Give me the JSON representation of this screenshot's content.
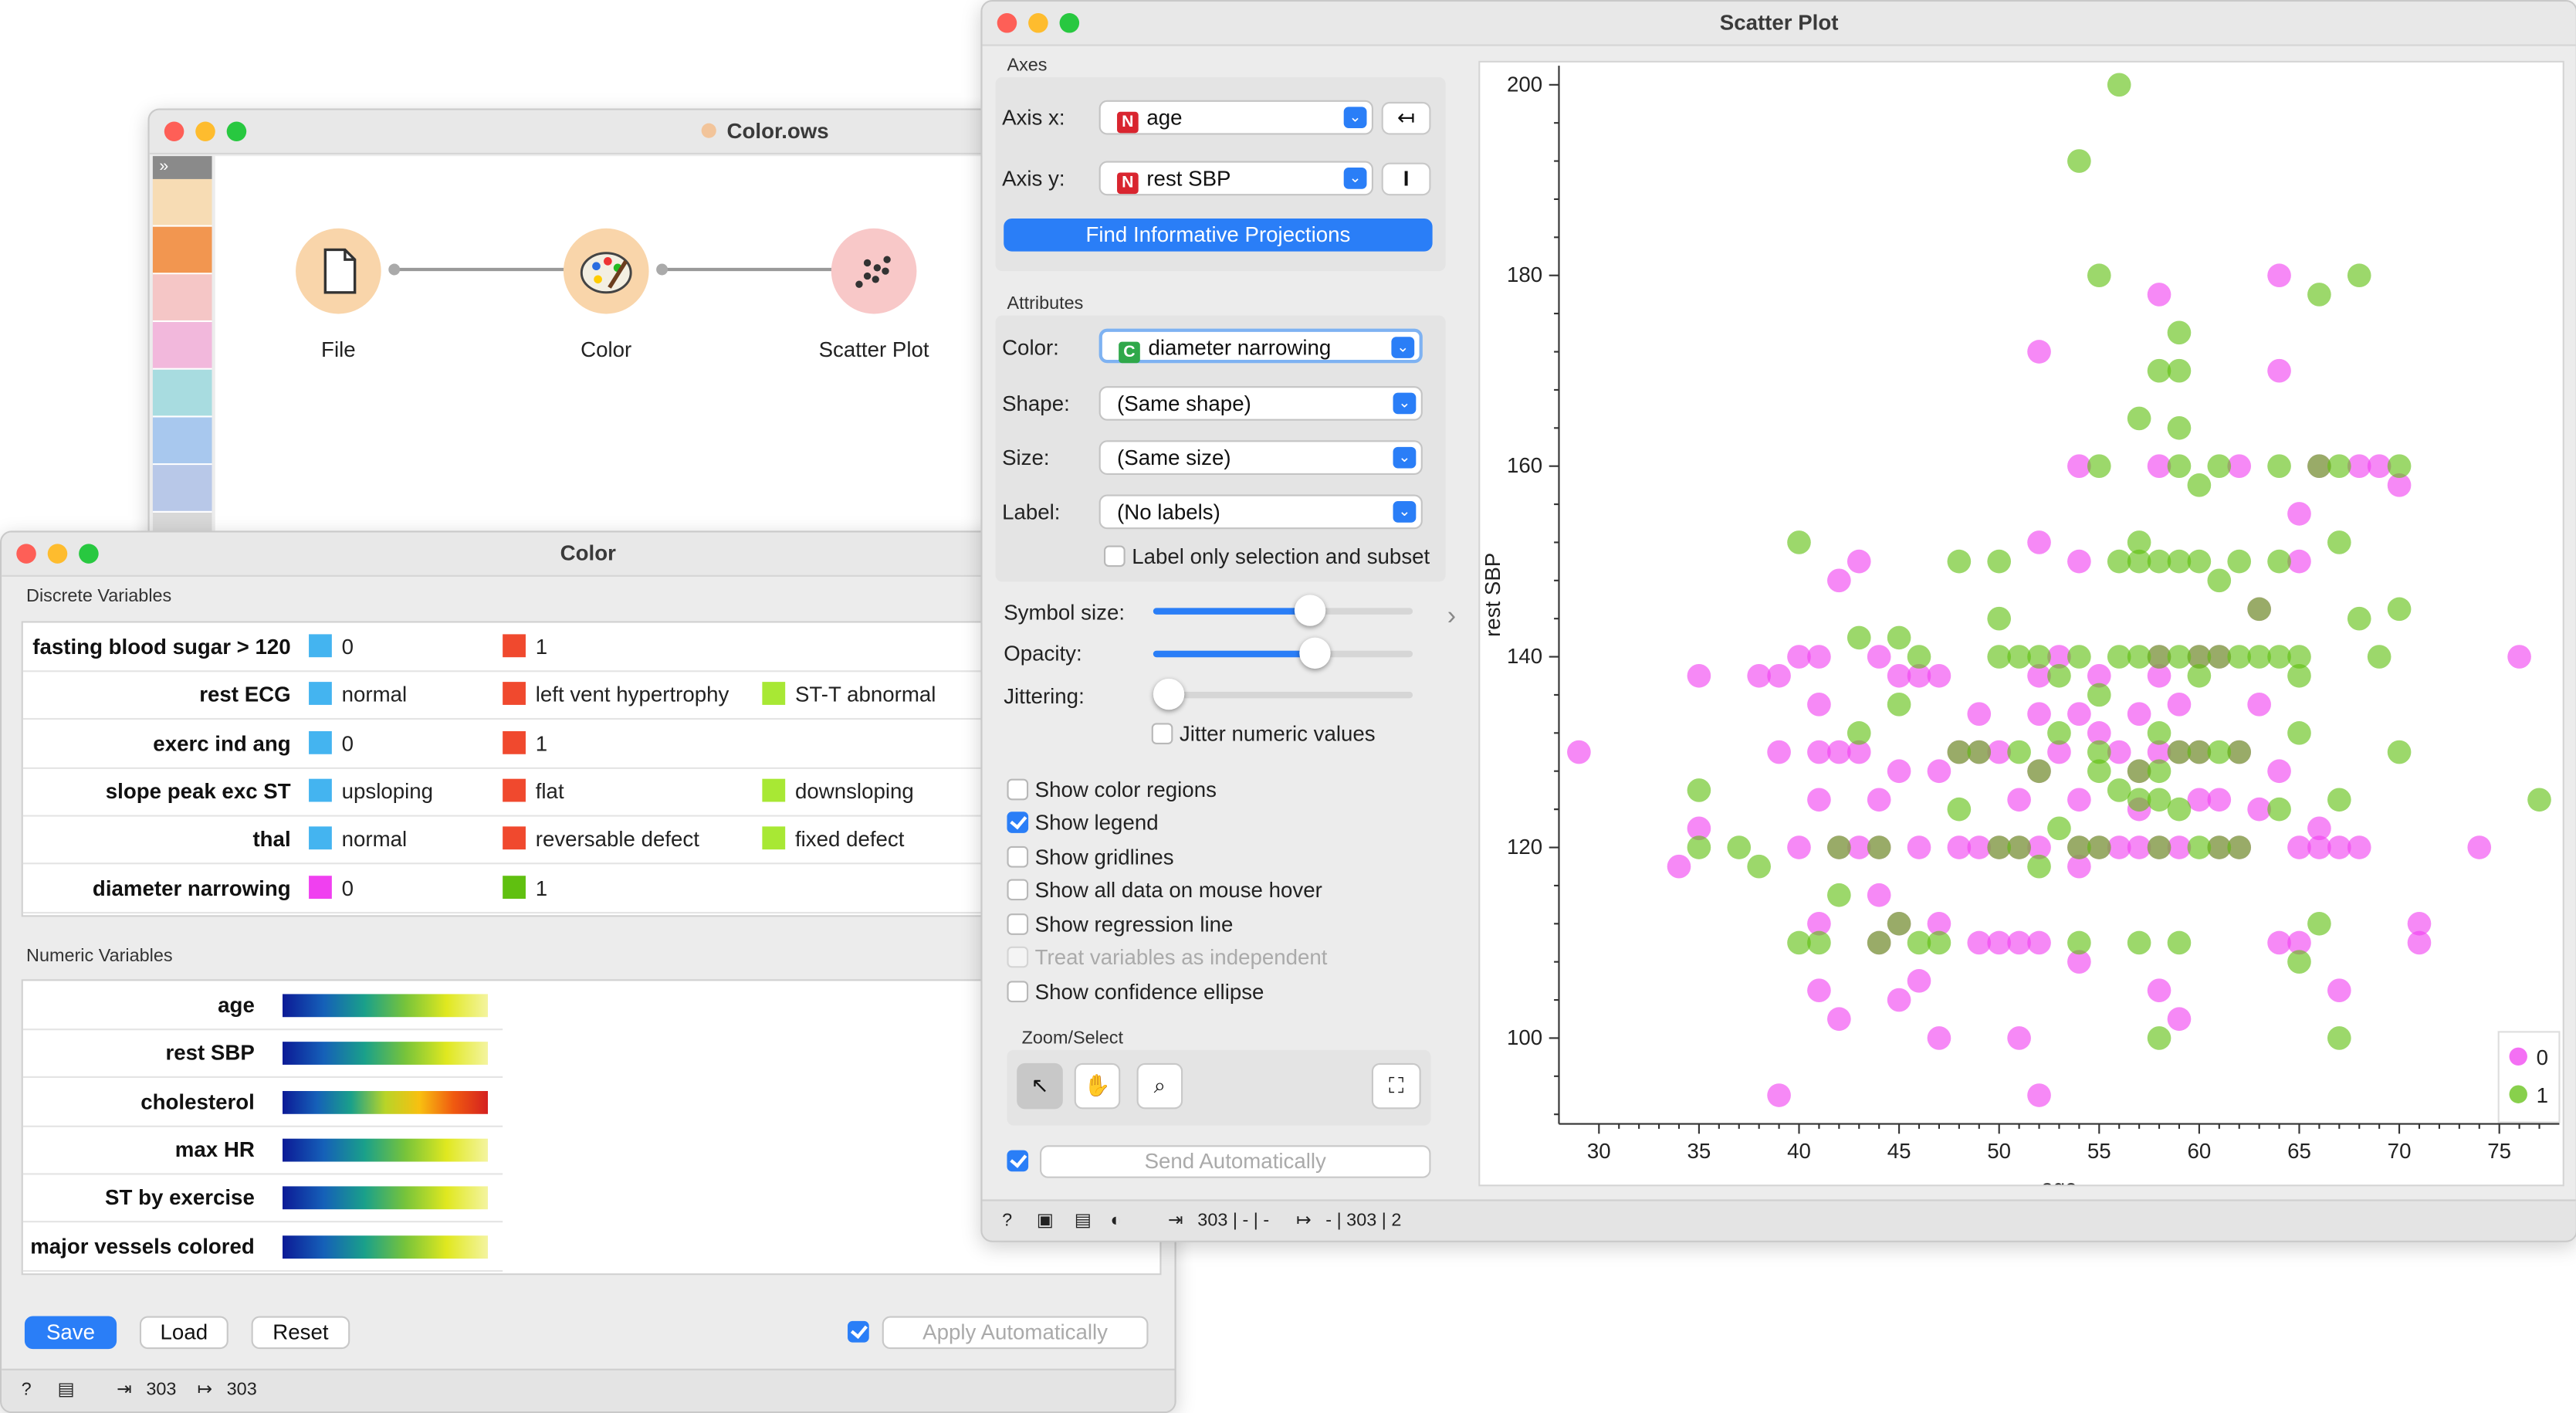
{
  "workflow_window": {
    "title": "Color.ows",
    "widgets": [
      {
        "name": "File",
        "icon": "file-icon"
      },
      {
        "name": "Color",
        "icon": "palette-icon"
      },
      {
        "name": "Scatter Plot",
        "icon": "scatter-plot-icon"
      }
    ]
  },
  "color_window": {
    "title": "Color",
    "discrete_header": "Discrete Variables",
    "discrete_vars": [
      {
        "name": "fasting blood sugar > 120",
        "values": [
          {
            "label": "0",
            "color": "#44b4f0"
          },
          {
            "label": "1",
            "color": "#f0492e"
          }
        ]
      },
      {
        "name": "rest ECG",
        "values": [
          {
            "label": "normal",
            "color": "#44b4f0"
          },
          {
            "label": "left vent hypertrophy",
            "color": "#f0492e"
          },
          {
            "label": "ST-T abnormal",
            "color": "#a8e834"
          }
        ]
      },
      {
        "name": "exerc ind ang",
        "values": [
          {
            "label": "0",
            "color": "#44b4f0"
          },
          {
            "label": "1",
            "color": "#f0492e"
          }
        ]
      },
      {
        "name": "slope peak exc ST",
        "values": [
          {
            "label": "upsloping",
            "color": "#44b4f0"
          },
          {
            "label": "flat",
            "color": "#f0492e"
          },
          {
            "label": "downsloping",
            "color": "#a8e834"
          }
        ]
      },
      {
        "name": "thal",
        "values": [
          {
            "label": "normal",
            "color": "#44b4f0"
          },
          {
            "label": "reversable defect",
            "color": "#f0492e"
          },
          {
            "label": "fixed defect",
            "color": "#a8e834"
          }
        ]
      },
      {
        "name": "diameter narrowing",
        "values": [
          {
            "label": "0",
            "color": "#f040f0"
          },
          {
            "label": "1",
            "color": "#60c010"
          }
        ]
      }
    ],
    "numeric_header": "Numeric Variables",
    "numeric_vars": [
      {
        "name": "age",
        "palette": "blue-green-yellow"
      },
      {
        "name": "rest SBP",
        "palette": "blue-green-yellow"
      },
      {
        "name": "cholesterol",
        "palette": "blue-green-yellow-red"
      },
      {
        "name": "max HR",
        "palette": "blue-green-yellow"
      },
      {
        "name": "ST by exercise",
        "palette": "blue-green-yellow"
      },
      {
        "name": "major vessels colored",
        "palette": "blue-green-yellow"
      }
    ],
    "buttons": {
      "save": "Save",
      "load": "Load",
      "reset": "Reset",
      "apply": "Apply Automatically"
    },
    "status": {
      "input": "303",
      "output": "303"
    }
  },
  "scatter_window": {
    "title": "Scatter Plot",
    "axes_header": "Axes",
    "axis_x_label": "Axis x:",
    "axis_x_value": "age",
    "axis_y_label": "Axis y:",
    "axis_y_value": "rest SBP",
    "find_button": "Find Informative Projections",
    "attributes_header": "Attributes",
    "color_label": "Color:",
    "color_value": "diameter narrowing",
    "shape_label": "Shape:",
    "shape_value": "(Same shape)",
    "size_label": "Size:",
    "size_value": "(Same size)",
    "label_label": "Label:",
    "label_value": "(No labels)",
    "label_only": "Label only selection and subset",
    "symbol_size_label": "Symbol size:",
    "symbol_size": 0.6,
    "opacity_label": "Opacity:",
    "opacity": 0.62,
    "jittering_label": "Jittering:",
    "jittering": 0.0,
    "jitter_numeric": "Jitter numeric values",
    "options": [
      {
        "label": "Show color regions",
        "checked": false,
        "enabled": true
      },
      {
        "label": "Show legend",
        "checked": true,
        "enabled": true
      },
      {
        "label": "Show gridlines",
        "checked": false,
        "enabled": true
      },
      {
        "label": "Show all data on mouse hover",
        "checked": false,
        "enabled": true
      },
      {
        "label": "Show regression line",
        "checked": false,
        "enabled": true
      },
      {
        "label": "Treat variables as independent",
        "checked": false,
        "enabled": false
      },
      {
        "label": "Show confidence ellipse",
        "checked": false,
        "enabled": true
      }
    ],
    "zoom_header": "Zoom/Select",
    "send_auto": "Send Automatically",
    "status_in": "303 | - | -",
    "status_out": "- | 303 | 2"
  },
  "chart_data": {
    "type": "scatter",
    "xlabel": "age",
    "ylabel": "rest SBP",
    "xlim": [
      28,
      78
    ],
    "ylim": [
      91,
      202
    ],
    "xticks": [
      30,
      35,
      40,
      45,
      50,
      55,
      60,
      65,
      70,
      75
    ],
    "yticks": [
      100,
      120,
      140,
      160,
      180,
      200
    ],
    "grid": false,
    "legend": "bottom-right",
    "series": [
      {
        "name": "0",
        "color": "#f040f0",
        "points": [
          [
            29,
            130
          ],
          [
            34,
            118
          ],
          [
            35,
            122
          ],
          [
            35,
            138
          ],
          [
            38,
            138
          ],
          [
            39,
            94
          ],
          [
            39,
            130
          ],
          [
            39,
            138
          ],
          [
            40,
            140
          ],
          [
            40,
            120
          ],
          [
            41,
            105
          ],
          [
            41,
            112
          ],
          [
            41,
            125
          ],
          [
            41,
            130
          ],
          [
            41,
            135
          ],
          [
            41,
            140
          ],
          [
            42,
            102
          ],
          [
            42,
            120
          ],
          [
            42,
            130
          ],
          [
            42,
            148
          ],
          [
            43,
            120
          ],
          [
            43,
            130
          ],
          [
            43,
            150
          ],
          [
            44,
            110
          ],
          [
            44,
            115
          ],
          [
            44,
            120
          ],
          [
            44,
            125
          ],
          [
            44,
            140
          ],
          [
            45,
            104
          ],
          [
            45,
            112
          ],
          [
            45,
            128
          ],
          [
            45,
            138
          ],
          [
            46,
            106
          ],
          [
            46,
            120
          ],
          [
            46,
            138
          ],
          [
            47,
            100
          ],
          [
            47,
            112
          ],
          [
            47,
            128
          ],
          [
            47,
            138
          ],
          [
            48,
            120
          ],
          [
            48,
            130
          ],
          [
            49,
            110
          ],
          [
            49,
            120
          ],
          [
            49,
            130
          ],
          [
            49,
            134
          ],
          [
            50,
            110
          ],
          [
            50,
            120
          ],
          [
            50,
            130
          ],
          [
            51,
            100
          ],
          [
            51,
            110
          ],
          [
            51,
            120
          ],
          [
            51,
            125
          ],
          [
            52,
            94
          ],
          [
            52,
            110
          ],
          [
            52,
            120
          ],
          [
            52,
            128
          ],
          [
            52,
            134
          ],
          [
            52,
            138
          ],
          [
            52,
            152
          ],
          [
            52,
            172
          ],
          [
            53,
            130
          ],
          [
            53,
            140
          ],
          [
            54,
            108
          ],
          [
            54,
            118
          ],
          [
            54,
            120
          ],
          [
            54,
            125
          ],
          [
            54,
            134
          ],
          [
            54,
            150
          ],
          [
            54,
            160
          ],
          [
            55,
            120
          ],
          [
            55,
            132
          ],
          [
            55,
            138
          ],
          [
            56,
            120
          ],
          [
            56,
            130
          ],
          [
            57,
            120
          ],
          [
            57,
            124
          ],
          [
            57,
            128
          ],
          [
            57,
            134
          ],
          [
            58,
            105
          ],
          [
            58,
            120
          ],
          [
            58,
            130
          ],
          [
            58,
            138
          ],
          [
            58,
            140
          ],
          [
            58,
            160
          ],
          [
            58,
            178
          ],
          [
            59,
            102
          ],
          [
            59,
            120
          ],
          [
            59,
            130
          ],
          [
            59,
            135
          ],
          [
            60,
            125
          ],
          [
            60,
            130
          ],
          [
            60,
            140
          ],
          [
            61,
            120
          ],
          [
            61,
            125
          ],
          [
            61,
            140
          ],
          [
            62,
            120
          ],
          [
            62,
            130
          ],
          [
            62,
            160
          ],
          [
            63,
            124
          ],
          [
            63,
            135
          ],
          [
            63,
            145
          ],
          [
            64,
            110
          ],
          [
            64,
            128
          ],
          [
            64,
            170
          ],
          [
            64,
            180
          ],
          [
            65,
            110
          ],
          [
            65,
            120
          ],
          [
            65,
            150
          ],
          [
            65,
            155
          ],
          [
            66,
            120
          ],
          [
            66,
            122
          ],
          [
            66,
            160
          ],
          [
            67,
            105
          ],
          [
            67,
            120
          ],
          [
            68,
            120
          ],
          [
            68,
            160
          ],
          [
            69,
            160
          ],
          [
            70,
            158
          ],
          [
            71,
            110
          ],
          [
            71,
            112
          ],
          [
            74,
            120
          ],
          [
            76,
            140
          ]
        ]
      },
      {
        "name": "1",
        "color": "#60c010",
        "points": [
          [
            35,
            120
          ],
          [
            35,
            126
          ],
          [
            37,
            120
          ],
          [
            38,
            118
          ],
          [
            40,
            110
          ],
          [
            40,
            152
          ],
          [
            41,
            110
          ],
          [
            42,
            115
          ],
          [
            42,
            120
          ],
          [
            43,
            132
          ],
          [
            43,
            142
          ],
          [
            44,
            110
          ],
          [
            44,
            120
          ],
          [
            45,
            112
          ],
          [
            45,
            135
          ],
          [
            45,
            142
          ],
          [
            46,
            110
          ],
          [
            46,
            140
          ],
          [
            47,
            110
          ],
          [
            48,
            124
          ],
          [
            48,
            130
          ],
          [
            48,
            150
          ],
          [
            49,
            130
          ],
          [
            50,
            120
          ],
          [
            50,
            140
          ],
          [
            50,
            144
          ],
          [
            50,
            150
          ],
          [
            51,
            120
          ],
          [
            51,
            130
          ],
          [
            51,
            140
          ],
          [
            52,
            118
          ],
          [
            52,
            128
          ],
          [
            52,
            140
          ],
          [
            53,
            122
          ],
          [
            53,
            132
          ],
          [
            53,
            138
          ],
          [
            54,
            110
          ],
          [
            54,
            120
          ],
          [
            54,
            140
          ],
          [
            54,
            192
          ],
          [
            55,
            120
          ],
          [
            55,
            128
          ],
          [
            55,
            130
          ],
          [
            55,
            136
          ],
          [
            55,
            160
          ],
          [
            55,
            180
          ],
          [
            56,
            126
          ],
          [
            56,
            140
          ],
          [
            56,
            150
          ],
          [
            56,
            200
          ],
          [
            57,
            110
          ],
          [
            57,
            125
          ],
          [
            57,
            128
          ],
          [
            57,
            140
          ],
          [
            57,
            150
          ],
          [
            57,
            152
          ],
          [
            57,
            165
          ],
          [
            58,
            100
          ],
          [
            58,
            120
          ],
          [
            58,
            125
          ],
          [
            58,
            128
          ],
          [
            58,
            132
          ],
          [
            58,
            140
          ],
          [
            58,
            150
          ],
          [
            58,
            170
          ],
          [
            59,
            110
          ],
          [
            59,
            124
          ],
          [
            59,
            130
          ],
          [
            59,
            140
          ],
          [
            59,
            150
          ],
          [
            59,
            160
          ],
          [
            59,
            164
          ],
          [
            59,
            170
          ],
          [
            59,
            174
          ],
          [
            60,
            120
          ],
          [
            60,
            130
          ],
          [
            60,
            138
          ],
          [
            60,
            140
          ],
          [
            60,
            150
          ],
          [
            60,
            158
          ],
          [
            61,
            120
          ],
          [
            61,
            130
          ],
          [
            61,
            140
          ],
          [
            61,
            148
          ],
          [
            61,
            160
          ],
          [
            62,
            120
          ],
          [
            62,
            130
          ],
          [
            62,
            140
          ],
          [
            62,
            150
          ],
          [
            63,
            140
          ],
          [
            63,
            145
          ],
          [
            64,
            124
          ],
          [
            64,
            140
          ],
          [
            64,
            150
          ],
          [
            64,
            160
          ],
          [
            65,
            108
          ],
          [
            65,
            132
          ],
          [
            65,
            138
          ],
          [
            65,
            140
          ],
          [
            66,
            112
          ],
          [
            66,
            160
          ],
          [
            66,
            178
          ],
          [
            67,
            100
          ],
          [
            67,
            125
          ],
          [
            67,
            152
          ],
          [
            67,
            160
          ],
          [
            68,
            144
          ],
          [
            68,
            180
          ],
          [
            69,
            140
          ],
          [
            70,
            130
          ],
          [
            70,
            145
          ],
          [
            70,
            160
          ],
          [
            77,
            125
          ]
        ]
      }
    ]
  }
}
